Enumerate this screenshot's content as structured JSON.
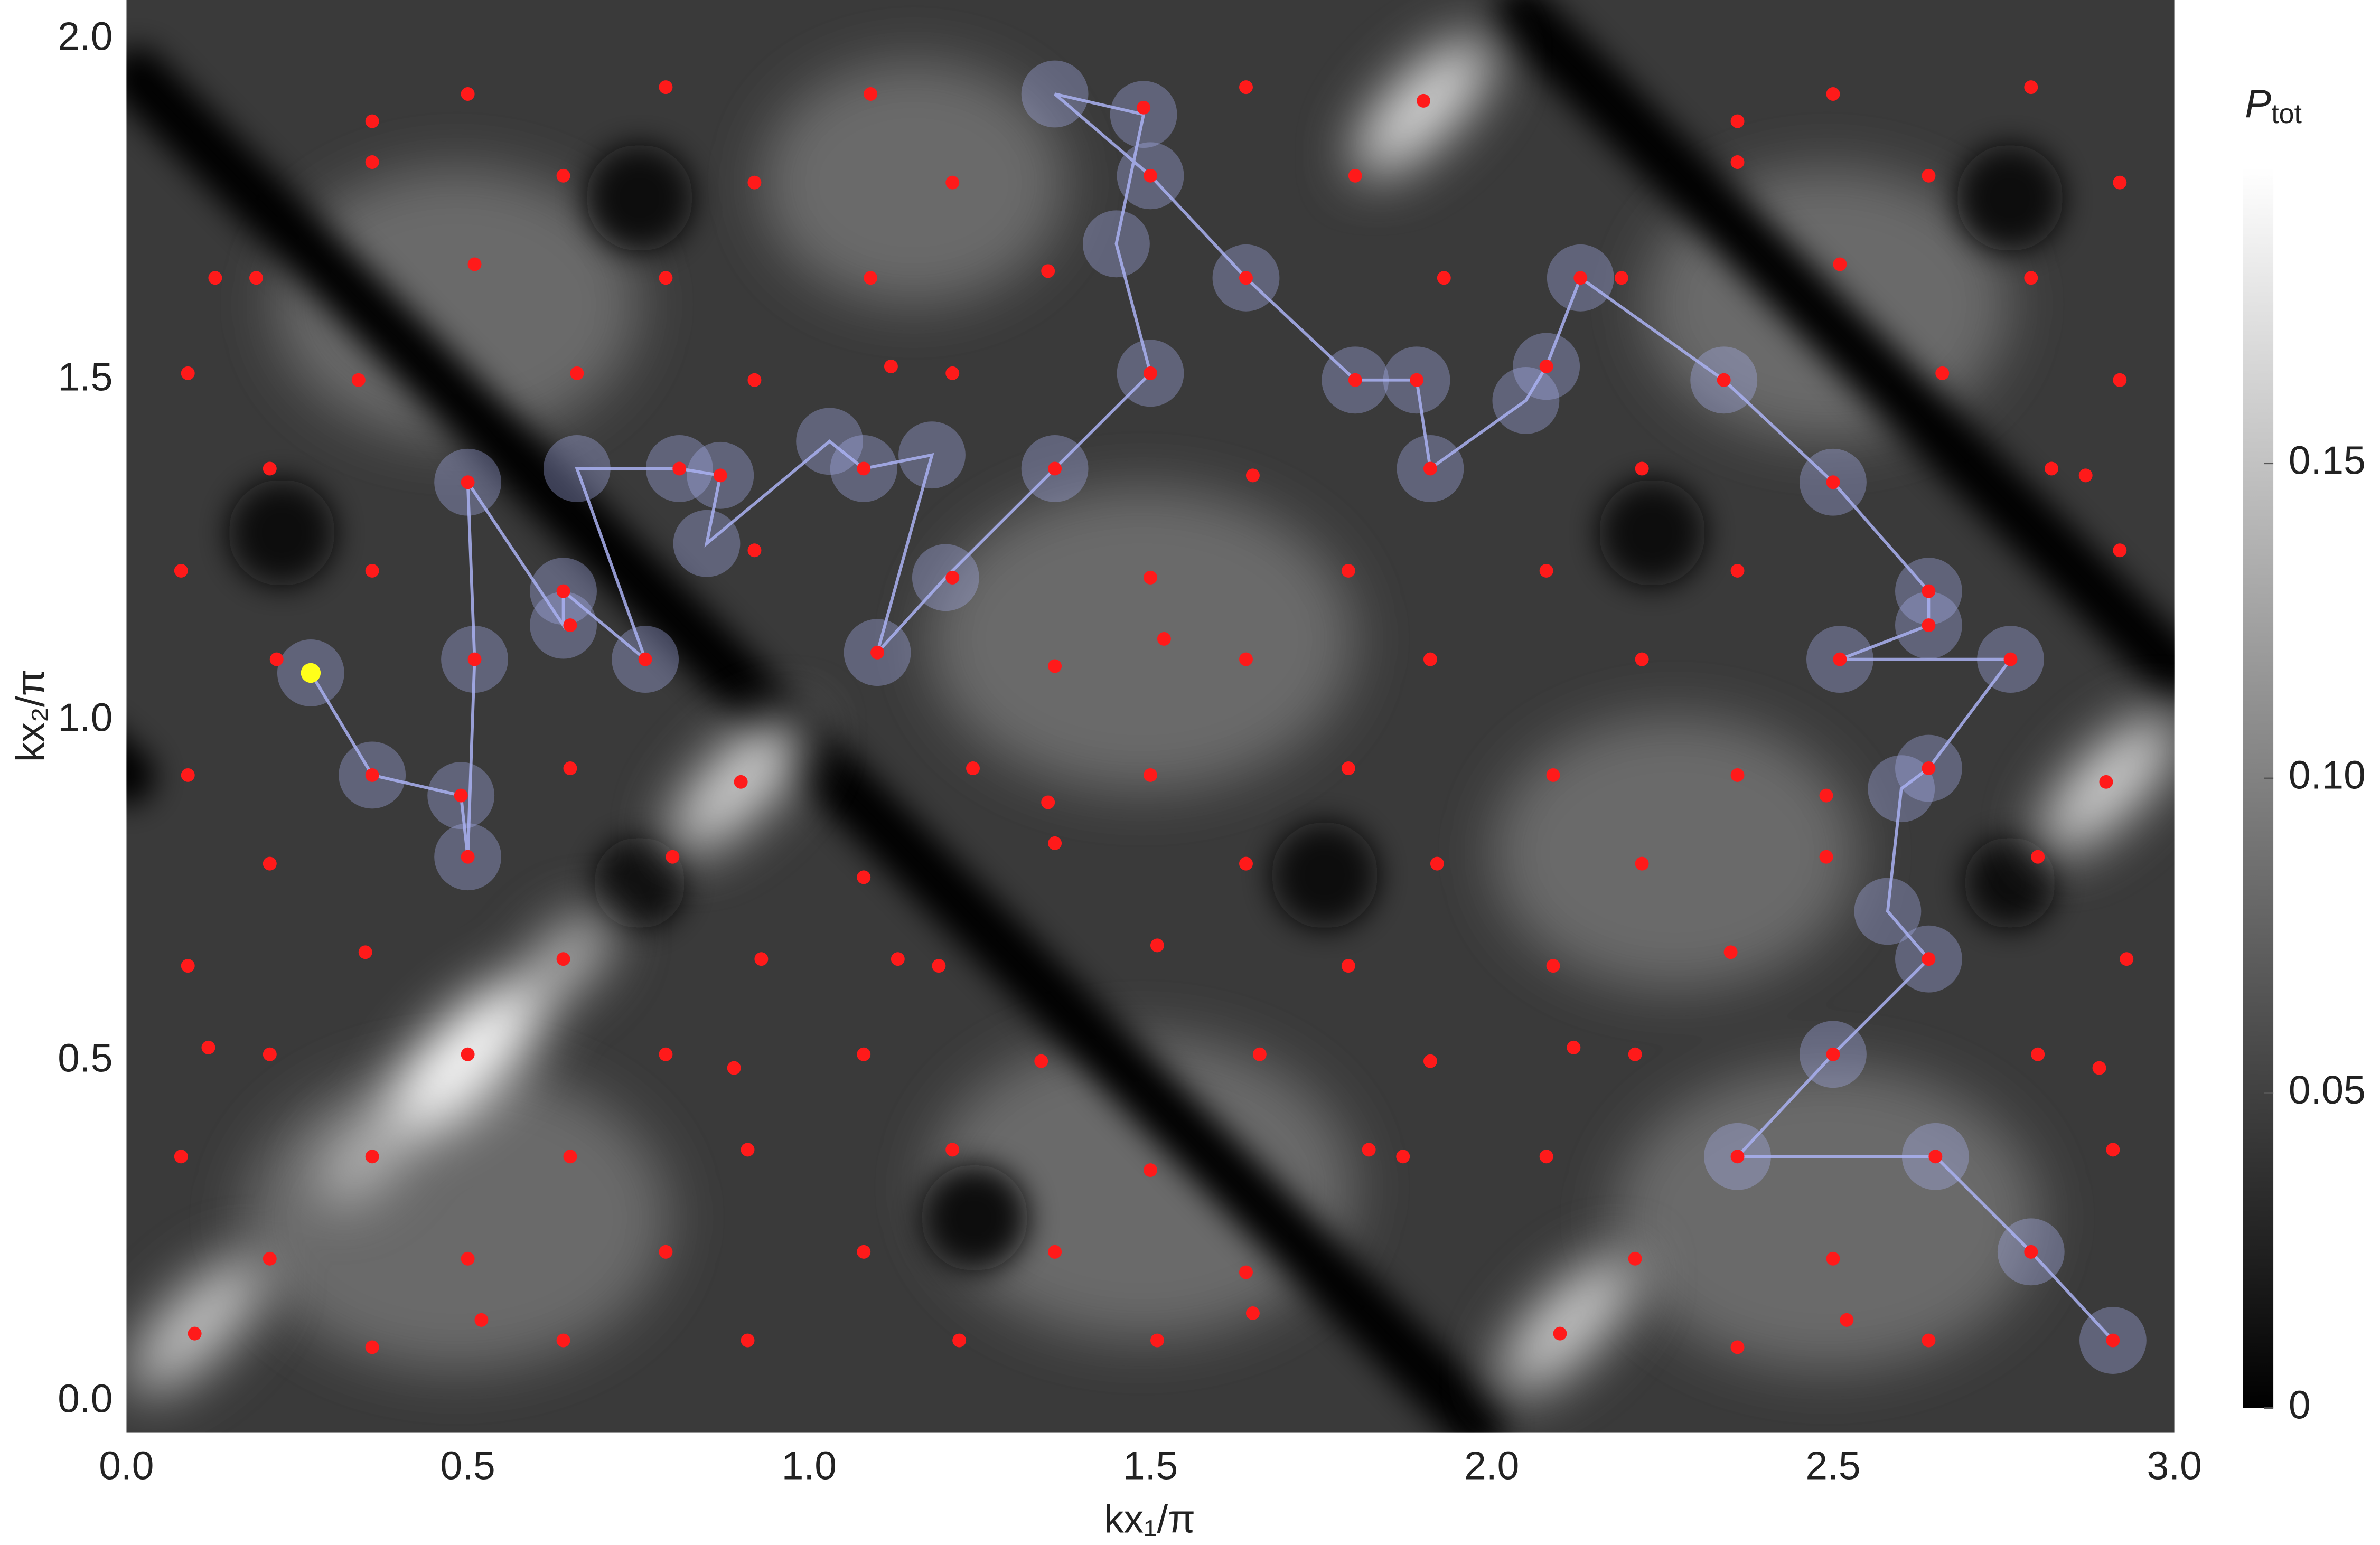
{
  "chart_data": {
    "type": "scatter",
    "xlabel": "kx₁/π",
    "ylabel": "kx₂/π",
    "xlim": [
      0,
      3
    ],
    "ylim": [
      -0.045,
      2.058
    ],
    "xticks": [
      {
        "value": 0,
        "label": "0.0"
      },
      {
        "value": 0.5,
        "label": "0.5"
      },
      {
        "value": 1,
        "label": "1.0"
      },
      {
        "value": 1.5,
        "label": "1.5"
      },
      {
        "value": 2,
        "label": "2.0"
      },
      {
        "value": 2.5,
        "label": "2.5"
      },
      {
        "value": 3,
        "label": "3.0"
      }
    ],
    "yticks": [
      {
        "value": 0,
        "label": "0.0"
      },
      {
        "value": 0.5,
        "label": "0.5"
      },
      {
        "value": 1,
        "label": "1.0"
      },
      {
        "value": 1.5,
        "label": "1.5"
      },
      {
        "value": 2,
        "label": "2.0"
      }
    ],
    "colorbar": {
      "label": [
        "P",
        "tot"
      ],
      "clim": [
        0,
        0.197
      ],
      "ticks": [
        0,
        0.05,
        {
          "value": 0.1,
          "label": "0.10"
        },
        0.15
      ]
    },
    "points": {
      "color": "#ff1a1a",
      "x": [
        0.36,
        0.5,
        0.79,
        1.09,
        1.49,
        1.64,
        1.9,
        2.36,
        2.5,
        2.79,
        0.36,
        0.64,
        0.92,
        1.21,
        1.5,
        1.8,
        2.36,
        2.64,
        2.92,
        0.13,
        0.19,
        0.51,
        0.79,
        1.09,
        1.35,
        1.64,
        1.93,
        2.13,
        2.19,
        2.51,
        2.79,
        0.09,
        0.34,
        0.66,
        0.92,
        1.12,
        1.21,
        1.5,
        1.8,
        1.89,
        2.08,
        2.34,
        2.66,
        2.92,
        0.21,
        0.5,
        0.81,
        0.87,
        1.08,
        1.36,
        1.65,
        1.91,
        2.22,
        2.5,
        2.82,
        2.87,
        0.08,
        0.36,
        0.64,
        0.92,
        1.21,
        1.5,
        1.79,
        2.08,
        2.36,
        2.64,
        2.92,
        0.22,
        0.51,
        0.65,
        0.76,
        1.1,
        1.36,
        1.52,
        1.64,
        1.91,
        2.22,
        2.51,
        2.64,
        2.76,
        0.09,
        0.36,
        0.49,
        0.65,
        0.9,
        1.24,
        1.35,
        1.5,
        1.79,
        2.09,
        2.36,
        2.49,
        2.64,
        2.9,
        0.21,
        0.5,
        0.8,
        1.08,
        1.36,
        1.64,
        1.92,
        2.22,
        2.49,
        2.8,
        0.09,
        0.35,
        0.64,
        0.93,
        1.13,
        1.19,
        1.51,
        1.79,
        2.09,
        2.35,
        2.64,
        2.93,
        0.12,
        0.21,
        0.5,
        0.79,
        0.89,
        1.08,
        1.34,
        1.66,
        1.91,
        2.12,
        2.21,
        2.5,
        2.8,
        2.89,
        0.08,
        0.36,
        0.65,
        0.91,
        1.21,
        1.5,
        1.82,
        1.87,
        2.08,
        2.36,
        2.65,
        2.91,
        0.21,
        0.5,
        0.79,
        1.08,
        1.36,
        1.64,
        1.65,
        2.21,
        2.5,
        2.79,
        0.1,
        0.36,
        0.52,
        0.64,
        0.91,
        1.22,
        1.51,
        2.1,
        2.36,
        2.52,
        2.64,
        2.91
      ],
      "y": [
        1.88,
        1.92,
        1.93,
        1.92,
        1.9,
        1.93,
        1.91,
        1.88,
        1.92,
        1.93,
        1.82,
        1.8,
        1.79,
        1.79,
        1.8,
        1.8,
        1.82,
        1.8,
        1.79,
        1.65,
        1.65,
        1.67,
        1.65,
        1.65,
        1.66,
        1.65,
        1.65,
        1.65,
        1.65,
        1.67,
        1.65,
        1.51,
        1.5,
        1.51,
        1.5,
        1.52,
        1.51,
        1.51,
        1.5,
        1.5,
        1.52,
        1.5,
        1.51,
        1.5,
        1.37,
        1.35,
        1.37,
        1.36,
        1.37,
        1.37,
        1.36,
        1.37,
        1.37,
        1.35,
        1.37,
        1.36,
        1.22,
        1.22,
        1.19,
        1.25,
        1.21,
        1.21,
        1.22,
        1.22,
        1.22,
        1.19,
        1.25,
        1.09,
        1.09,
        1.14,
        1.09,
        1.1,
        1.08,
        1.12,
        1.09,
        1.09,
        1.09,
        1.09,
        1.14,
        1.09,
        0.92,
        0.92,
        0.89,
        0.93,
        0.91,
        0.93,
        0.88,
        0.92,
        0.93,
        0.92,
        0.92,
        0.89,
        0.93,
        0.91,
        0.79,
        0.8,
        0.8,
        0.77,
        0.82,
        0.79,
        0.79,
        0.79,
        0.8,
        0.8,
        0.64,
        0.66,
        0.65,
        0.65,
        0.65,
        0.64,
        0.67,
        0.64,
        0.64,
        0.66,
        0.65,
        0.65,
        0.52,
        0.51,
        0.51,
        0.51,
        0.49,
        0.51,
        0.5,
        0.51,
        0.5,
        0.52,
        0.51,
        0.51,
        0.51,
        0.49,
        0.36,
        0.36,
        0.36,
        0.37,
        0.37,
        0.34,
        0.37,
        0.36,
        0.36,
        0.36,
        0.36,
        0.37,
        0.21,
        0.21,
        0.22,
        0.22,
        0.22,
        0.19,
        0.13,
        0.21,
        0.21,
        0.22,
        0.1,
        0.08,
        0.12,
        0.09,
        0.09,
        0.09,
        0.09,
        0.1,
        0.08,
        0.12,
        0.09,
        0.09
      ]
    },
    "trajectory": {
      "color": "#aab1f2",
      "x": [
        0.27,
        0.36,
        0.49,
        0.5,
        0.51,
        0.5,
        0.64,
        0.64,
        0.76,
        0.66,
        0.81,
        0.87,
        0.85,
        1.03,
        1.08,
        1.18,
        1.1,
        1.2,
        1.36,
        1.5,
        1.45,
        1.49,
        1.36,
        1.5,
        1.64,
        1.8,
        1.89,
        1.91,
        2.05,
        2.08,
        2.13,
        2.34,
        2.5,
        2.64,
        2.64,
        2.51,
        2.76,
        2.64,
        2.6,
        2.58,
        2.64,
        2.5,
        2.36,
        2.65,
        2.79,
        2.91
      ],
      "y": [
        1.07,
        0.92,
        0.89,
        0.8,
        1.09,
        1.35,
        1.14,
        1.19,
        1.09,
        1.37,
        1.37,
        1.36,
        1.26,
        1.41,
        1.37,
        1.39,
        1.1,
        1.21,
        1.37,
        1.51,
        1.7,
        1.89,
        1.92,
        1.8,
        1.65,
        1.5,
        1.5,
        1.37,
        1.47,
        1.52,
        1.65,
        1.5,
        1.35,
        1.19,
        1.14,
        1.09,
        1.09,
        0.93,
        0.9,
        0.72,
        0.65,
        0.51,
        0.36,
        0.36,
        0.22,
        0.09
      ]
    },
    "start": {
      "color": "#ffff1a",
      "x": 0.27,
      "y": 1.07
    }
  }
}
